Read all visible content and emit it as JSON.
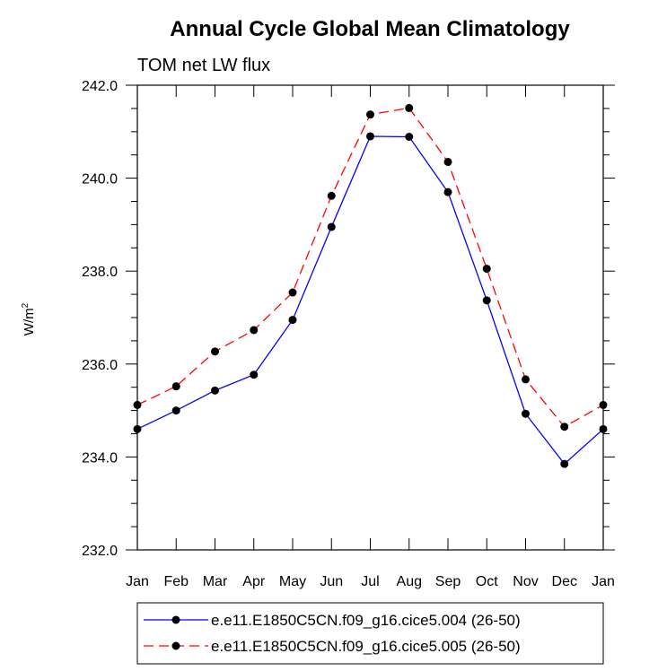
{
  "chart_data": {
    "type": "line",
    "title": "Annual Cycle Global Mean Climatology",
    "subtitle": "TOM net LW flux",
    "ylabel": "W/m",
    "ylabel_sup": "2",
    "xlabel": "",
    "categories": [
      "Jan",
      "Feb",
      "Mar",
      "Apr",
      "May",
      "Jun",
      "Jul",
      "Aug",
      "Sep",
      "Oct",
      "Nov",
      "Dec",
      "Jan"
    ],
    "ylim": [
      232.0,
      242.0
    ],
    "yticks": [
      232.0,
      234.0,
      236.0,
      238.0,
      240.0,
      242.0
    ],
    "ytick_labels": [
      "232.0",
      "234.0",
      "236.0",
      "238.0",
      "240.0",
      "242.0"
    ],
    "grid": false,
    "legend_position": "bottom",
    "series": [
      {
        "name": "e.e11.E1850C5CN.f09_g16.cice5.004 (26-50)",
        "color": "#0000ff",
        "dash": "solid",
        "marker": "filled-circle",
        "values": [
          234.6,
          235.0,
          235.43,
          235.77,
          236.95,
          238.95,
          240.9,
          240.89,
          239.7,
          237.37,
          234.93,
          233.85,
          234.6
        ]
      },
      {
        "name": "e.e11.E1850C5CN.f09_g16.cice5.005 (26-50)",
        "color": "#ff0000",
        "dash": "dashed",
        "marker": "filled-circle",
        "values": [
          235.12,
          235.52,
          236.27,
          236.73,
          237.54,
          239.62,
          241.37,
          241.51,
          240.35,
          238.05,
          235.67,
          234.65,
          235.12
        ]
      }
    ]
  }
}
